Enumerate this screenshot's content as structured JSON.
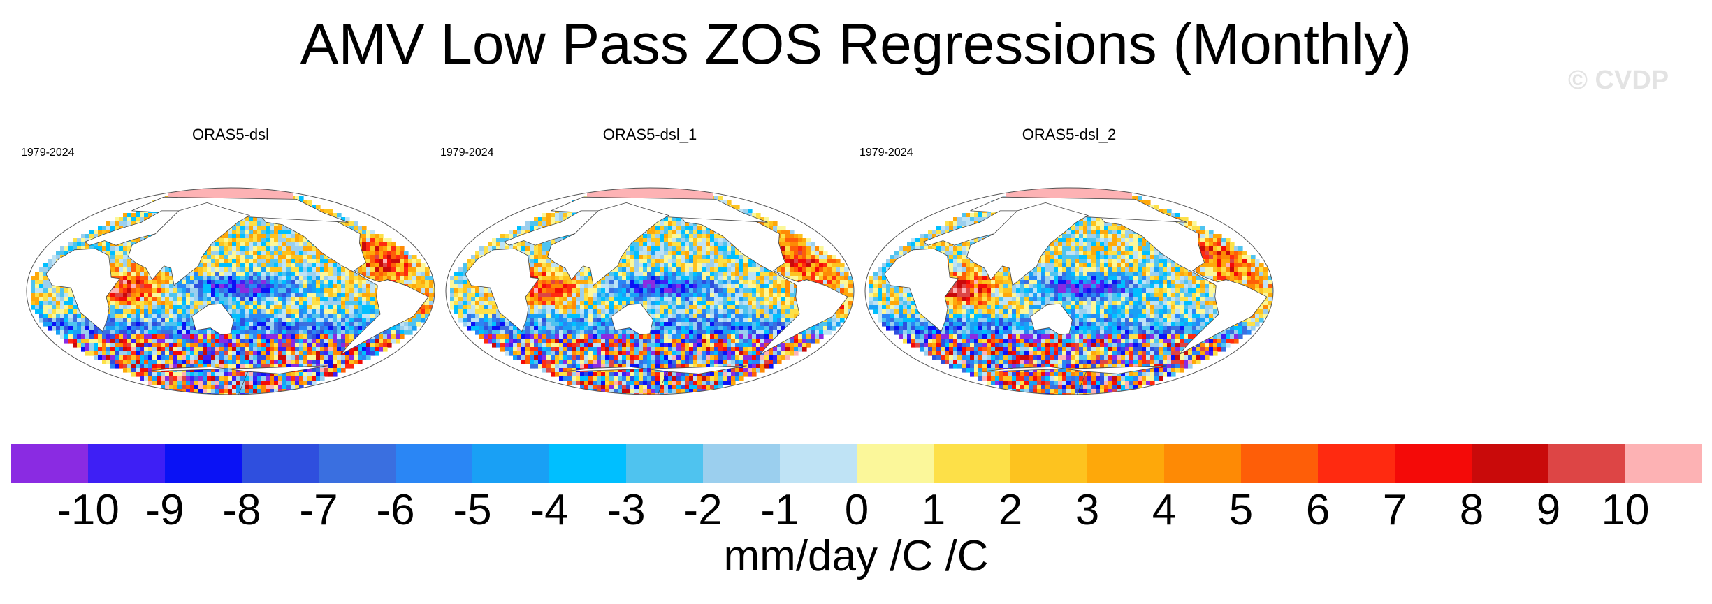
{
  "title": "AMV Low Pass ZOS Regressions (Monthly)",
  "watermark": "© CVDP",
  "panels": [
    {
      "name": "ORAS5-dsl",
      "period": "1979-2024"
    },
    {
      "name": "ORAS5-dsl_1",
      "period": "1979-2024"
    },
    {
      "name": "ORAS5-dsl_2",
      "period": "1979-2024"
    }
  ],
  "colorbar": {
    "ticks": [
      "-10",
      "-9",
      "-8",
      "-7",
      "-6",
      "-5",
      "-4",
      "-3",
      "-2",
      "-1",
      "0",
      "1",
      "2",
      "3",
      "4",
      "5",
      "6",
      "7",
      "8",
      "9",
      "10"
    ],
    "colors": [
      "#8a2be2",
      "#3e1ff5",
      "#0a12f5",
      "#2f4fde",
      "#3a6fe0",
      "#2a86f5",
      "#19a0f5",
      "#00bfff",
      "#4fc3ef",
      "#9bcfee",
      "#bfe3f5",
      "#fbf79a",
      "#fde048",
      "#fdc31f",
      "#fea80a",
      "#fe8a05",
      "#fe5e08",
      "#ff2a10",
      "#f40a08",
      "#c90a0a",
      "#dd4545",
      "#fdb2b4"
    ],
    "units": "mm/day /C /C"
  },
  "land_color": "#ffffff",
  "coastline_color": "#444444"
}
